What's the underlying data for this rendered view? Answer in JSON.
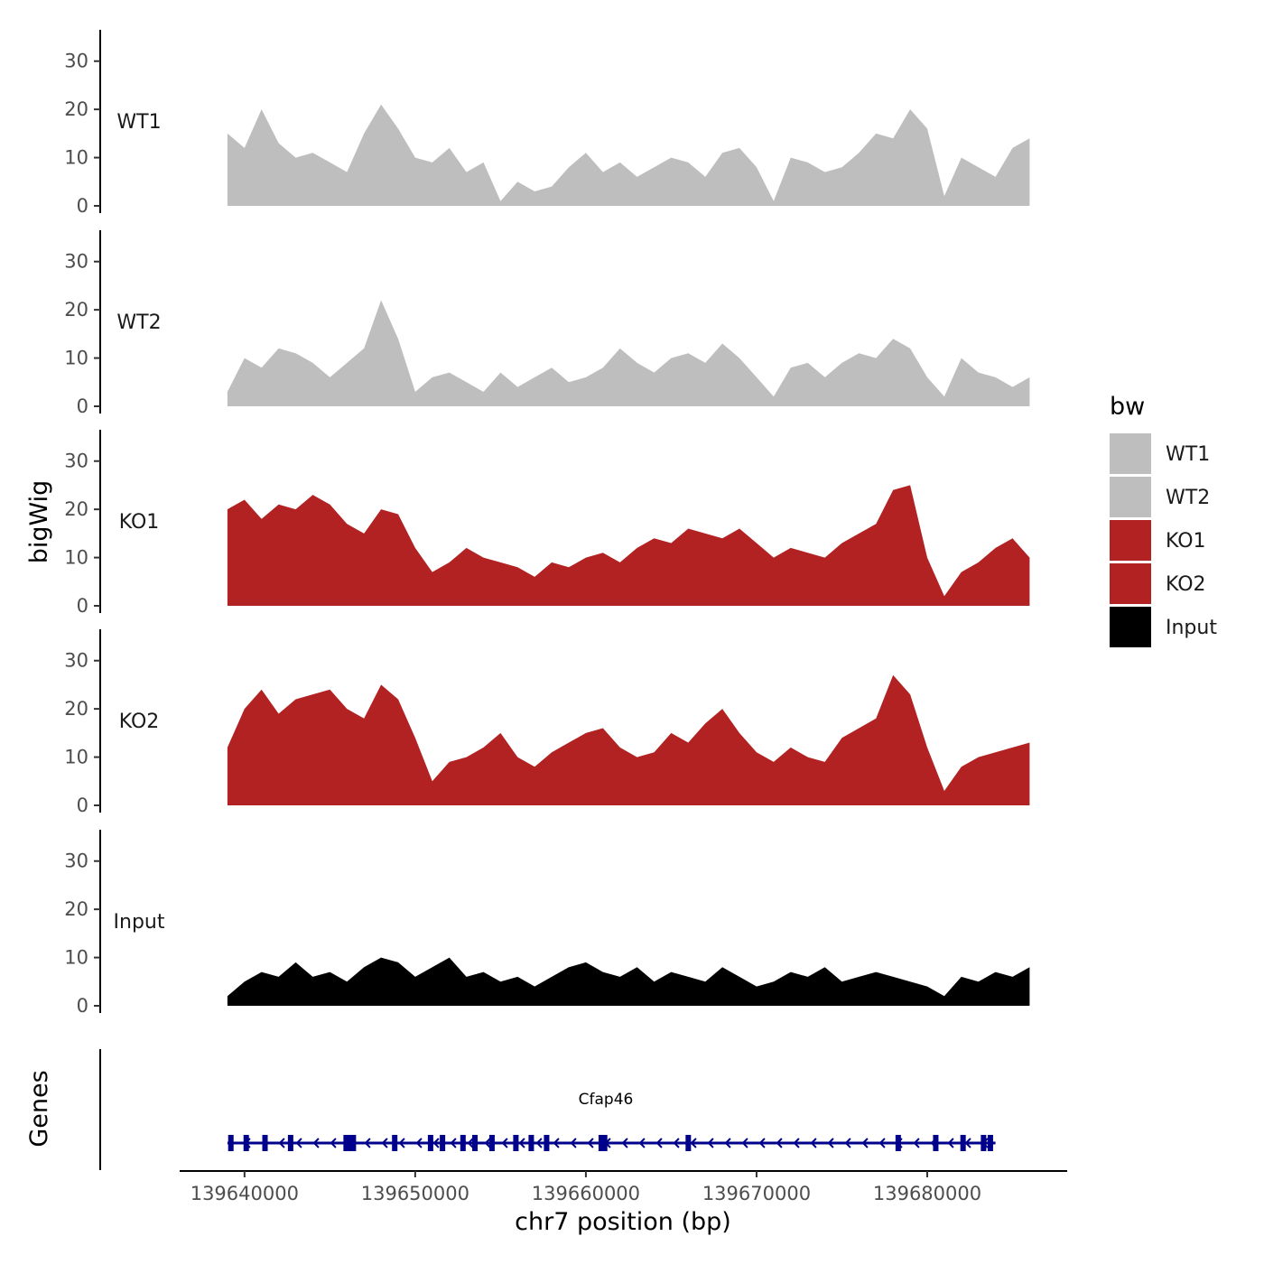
{
  "chart_data": {
    "type": "area",
    "ylabel": "bigWig",
    "xlabel": "chr7 position (bp)",
    "ylim": [
      0,
      35
    ],
    "yticks": [
      0,
      10,
      20,
      30
    ],
    "xlim": [
      139636200,
      139688200
    ],
    "xticks": [
      {
        "value": 139640000,
        "label": "139640000"
      },
      {
        "value": 139650000,
        "label": "139650000"
      },
      {
        "value": 139660000,
        "label": "139660000"
      },
      {
        "value": 139670000,
        "label": "139670000"
      },
      {
        "value": 139680000,
        "label": "139680000"
      }
    ],
    "legend": {
      "title": "bw",
      "placement": "right",
      "entries": [
        {
          "label": "WT1",
          "color": "#bebebe"
        },
        {
          "label": "WT2",
          "color": "#bebebe"
        },
        {
          "label": "KO1",
          "color": "#b22222"
        },
        {
          "label": "KO2",
          "color": "#b22222"
        },
        {
          "label": "Input",
          "color": "#000000"
        }
      ]
    },
    "series": [
      {
        "name": "WT1",
        "color": "#bebebe",
        "x": [
          139639000,
          139640000,
          139641000,
          139642000,
          139643000,
          139644000,
          139645000,
          139646000,
          139647000,
          139648000,
          139649000,
          139650000,
          139651000,
          139652000,
          139653000,
          139654000,
          139655000,
          139656000,
          139657000,
          139658000,
          139659000,
          139660000,
          139661000,
          139662000,
          139663000,
          139664000,
          139665000,
          139666000,
          139667000,
          139668000,
          139669000,
          139670000,
          139671000,
          139672000,
          139673000,
          139674000,
          139675000,
          139676000,
          139677000,
          139678000,
          139679000,
          139680000,
          139681000,
          139682000,
          139683000,
          139684000,
          139685000,
          139686000
        ],
        "y": [
          15,
          12,
          20,
          13,
          10,
          11,
          9,
          7,
          15,
          21,
          16,
          10,
          9,
          12,
          7,
          9,
          1,
          5,
          3,
          4,
          8,
          11,
          7,
          9,
          6,
          8,
          10,
          9,
          6,
          11,
          12,
          8,
          1,
          10,
          9,
          7,
          8,
          11,
          15,
          14,
          20,
          16,
          2,
          10,
          8,
          6,
          12,
          14
        ]
      },
      {
        "name": "WT2",
        "color": "#bebebe",
        "x": [
          139639000,
          139640000,
          139641000,
          139642000,
          139643000,
          139644000,
          139645000,
          139646000,
          139647000,
          139648000,
          139649000,
          139650000,
          139651000,
          139652000,
          139653000,
          139654000,
          139655000,
          139656000,
          139657000,
          139658000,
          139659000,
          139660000,
          139661000,
          139662000,
          139663000,
          139664000,
          139665000,
          139666000,
          139667000,
          139668000,
          139669000,
          139670000,
          139671000,
          139672000,
          139673000,
          139674000,
          139675000,
          139676000,
          139677000,
          139678000,
          139679000,
          139680000,
          139681000,
          139682000,
          139683000,
          139684000,
          139685000,
          139686000
        ],
        "y": [
          3,
          10,
          8,
          12,
          11,
          9,
          6,
          9,
          12,
          22,
          14,
          3,
          6,
          7,
          5,
          3,
          7,
          4,
          6,
          8,
          5,
          6,
          8,
          12,
          9,
          7,
          10,
          11,
          9,
          13,
          10,
          6,
          2,
          8,
          9,
          6,
          9,
          11,
          10,
          14,
          12,
          6,
          2,
          10,
          7,
          6,
          4,
          6
        ]
      },
      {
        "name": "KO1",
        "color": "#b22222",
        "x": [
          139639000,
          139640000,
          139641000,
          139642000,
          139643000,
          139644000,
          139645000,
          139646000,
          139647000,
          139648000,
          139649000,
          139650000,
          139651000,
          139652000,
          139653000,
          139654000,
          139655000,
          139656000,
          139657000,
          139658000,
          139659000,
          139660000,
          139661000,
          139662000,
          139663000,
          139664000,
          139665000,
          139666000,
          139667000,
          139668000,
          139669000,
          139670000,
          139671000,
          139672000,
          139673000,
          139674000,
          139675000,
          139676000,
          139677000,
          139678000,
          139679000,
          139680000,
          139681000,
          139682000,
          139683000,
          139684000,
          139685000,
          139686000
        ],
        "y": [
          20,
          22,
          18,
          21,
          20,
          23,
          21,
          17,
          15,
          20,
          19,
          12,
          7,
          9,
          12,
          10,
          9,
          8,
          6,
          9,
          8,
          10,
          11,
          9,
          12,
          14,
          13,
          16,
          15,
          14,
          16,
          13,
          10,
          12,
          11,
          10,
          13,
          15,
          17,
          24,
          25,
          10,
          2,
          7,
          9,
          12,
          14,
          10
        ]
      },
      {
        "name": "KO2",
        "color": "#b22222",
        "x": [
          139639000,
          139640000,
          139641000,
          139642000,
          139643000,
          139644000,
          139645000,
          139646000,
          139647000,
          139648000,
          139649000,
          139650000,
          139651000,
          139652000,
          139653000,
          139654000,
          139655000,
          139656000,
          139657000,
          139658000,
          139659000,
          139660000,
          139661000,
          139662000,
          139663000,
          139664000,
          139665000,
          139666000,
          139667000,
          139668000,
          139669000,
          139670000,
          139671000,
          139672000,
          139673000,
          139674000,
          139675000,
          139676000,
          139677000,
          139678000,
          139679000,
          139680000,
          139681000,
          139682000,
          139683000,
          139684000,
          139685000,
          139686000
        ],
        "y": [
          12,
          20,
          24,
          19,
          22,
          23,
          24,
          20,
          18,
          25,
          22,
          14,
          5,
          9,
          10,
          12,
          15,
          10,
          8,
          11,
          13,
          15,
          16,
          12,
          10,
          11,
          15,
          13,
          17,
          20,
          15,
          11,
          9,
          12,
          10,
          9,
          14,
          16,
          18,
          27,
          23,
          12,
          3,
          8,
          10,
          11,
          12,
          13
        ]
      },
      {
        "name": "Input",
        "color": "#000000",
        "x": [
          139639000,
          139640000,
          139641000,
          139642000,
          139643000,
          139644000,
          139645000,
          139646000,
          139647000,
          139648000,
          139649000,
          139650000,
          139651000,
          139652000,
          139653000,
          139654000,
          139655000,
          139656000,
          139657000,
          139658000,
          139659000,
          139660000,
          139661000,
          139662000,
          139663000,
          139664000,
          139665000,
          139666000,
          139667000,
          139668000,
          139669000,
          139670000,
          139671000,
          139672000,
          139673000,
          139674000,
          139675000,
          139676000,
          139677000,
          139678000,
          139679000,
          139680000,
          139681000,
          139682000,
          139683000,
          139684000,
          139685000,
          139686000
        ],
        "y": [
          2,
          5,
          7,
          6,
          9,
          6,
          7,
          5,
          8,
          10,
          9,
          6,
          8,
          10,
          6,
          7,
          5,
          6,
          4,
          6,
          8,
          9,
          7,
          6,
          8,
          5,
          7,
          6,
          5,
          8,
          6,
          4,
          5,
          7,
          6,
          8,
          5,
          6,
          7,
          6,
          5,
          4,
          2,
          6,
          5,
          7,
          6,
          8
        ]
      }
    ],
    "genes_track": {
      "ylabel": "Genes",
      "gene": {
        "name": "Cfap46",
        "start": 139639000,
        "end": 139684000,
        "strand": "-",
        "color": "#00008b",
        "exons": [
          139639200,
          139640100,
          139641200,
          139642700,
          139646000,
          139646300,
          139648800,
          139650900,
          139651600,
          139652800,
          139653500,
          139654500,
          139655900,
          139656800,
          139657700,
          139660900,
          139661100,
          139666000,
          139678300,
          139680500,
          139682100,
          139683300,
          139683700
        ]
      }
    }
  }
}
